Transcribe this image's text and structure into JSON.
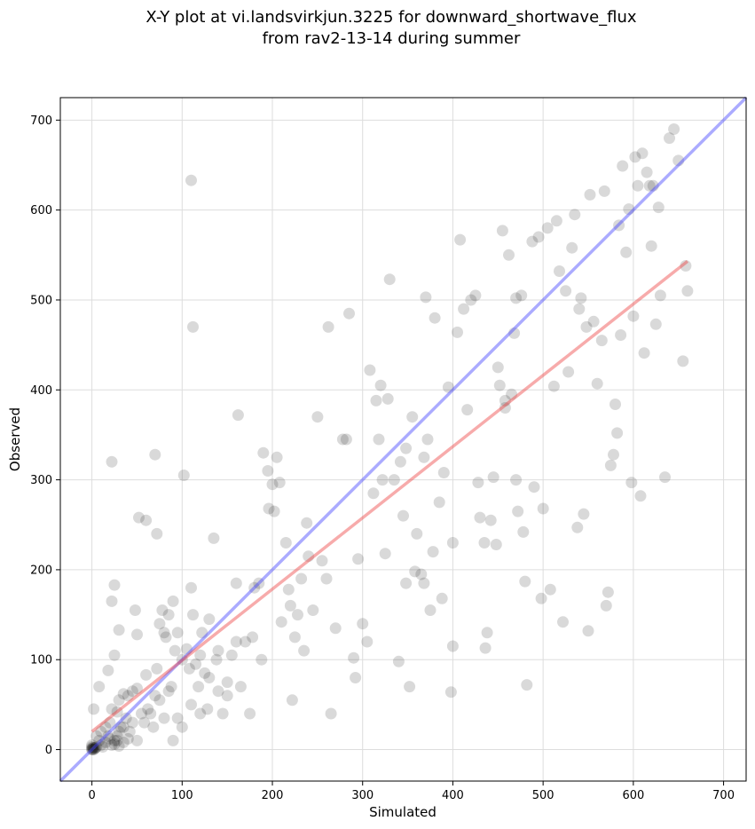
{
  "chart_data": {
    "type": "scatter",
    "title_line1": "X-Y plot at vi.landsvirkjun.3225 for downward_shortwave_flux",
    "title_line2": "from rav2-13-14 during summer",
    "xlabel": "Simulated",
    "ylabel": "Observed",
    "xlim": [
      -35,
      725
    ],
    "ylim": [
      -35,
      725
    ],
    "xticks": [
      0,
      100,
      200,
      300,
      400,
      500,
      600,
      700
    ],
    "yticks": [
      0,
      100,
      200,
      300,
      400,
      500,
      600,
      700
    ],
    "grid": true,
    "colors": {
      "points": "#000000",
      "one_to_one": "#4444ff",
      "fit_line": "#ee4444",
      "grid": "#dddddd"
    },
    "one_to_one_line": {
      "x": [
        -35,
        725
      ],
      "y": [
        -35,
        725
      ]
    },
    "fit_line": {
      "x": [
        0,
        660
      ],
      "y": [
        20,
        543
      ]
    },
    "points": [
      [
        0,
        0
      ],
      [
        0,
        1
      ],
      [
        1,
        0
      ],
      [
        2,
        2
      ],
      [
        1,
        2
      ],
      [
        0,
        3
      ],
      [
        3,
        1
      ],
      [
        2,
        0
      ],
      [
        4,
        2
      ],
      [
        0,
        5
      ],
      [
        5,
        3
      ],
      [
        8,
        10
      ],
      [
        10,
        5
      ],
      [
        15,
        8
      ],
      [
        20,
        12
      ],
      [
        25,
        6
      ],
      [
        12,
        3
      ],
      [
        18,
        15
      ],
      [
        22,
        5
      ],
      [
        28,
        10
      ],
      [
        30,
        4
      ],
      [
        35,
        8
      ],
      [
        40,
        12
      ],
      [
        10,
        20
      ],
      [
        5,
        15
      ],
      [
        15,
        25
      ],
      [
        20,
        30
      ],
      [
        25,
        10
      ],
      [
        30,
        20
      ],
      [
        35,
        25
      ],
      [
        2,
        45
      ],
      [
        8,
        70
      ],
      [
        18,
        88
      ],
      [
        22,
        45
      ],
      [
        28,
        42
      ],
      [
        30,
        55
      ],
      [
        35,
        62
      ],
      [
        25,
        105
      ],
      [
        30,
        133
      ],
      [
        22,
        165
      ],
      [
        25,
        183
      ],
      [
        22,
        320
      ],
      [
        40,
        60
      ],
      [
        45,
        65
      ],
      [
        50,
        68
      ],
      [
        55,
        40
      ],
      [
        60,
        83
      ],
      [
        65,
        40
      ],
      [
        70,
        60
      ],
      [
        72,
        90
      ],
      [
        75,
        140
      ],
      [
        78,
        155
      ],
      [
        80,
        130
      ],
      [
        82,
        125
      ],
      [
        85,
        150
      ],
      [
        88,
        70
      ],
      [
        92,
        110
      ],
      [
        90,
        165
      ],
      [
        95,
        130
      ],
      [
        100,
        100
      ],
      [
        102,
        305
      ],
      [
        105,
        112
      ],
      [
        108,
        90
      ],
      [
        110,
        180
      ],
      [
        112,
        150
      ],
      [
        115,
        95
      ],
      [
        118,
        70
      ],
      [
        120,
        105
      ],
      [
        122,
        130
      ],
      [
        125,
        85
      ],
      [
        128,
        45
      ],
      [
        130,
        145
      ],
      [
        135,
        235
      ],
      [
        138,
        100
      ],
      [
        140,
        65
      ],
      [
        145,
        40
      ],
      [
        150,
        60
      ],
      [
        155,
        105
      ],
      [
        160,
        185
      ],
      [
        162,
        372
      ],
      [
        165,
        70
      ],
      [
        170,
        120
      ],
      [
        175,
        40
      ],
      [
        178,
        125
      ],
      [
        180,
        180
      ],
      [
        185,
        185
      ],
      [
        188,
        100
      ],
      [
        190,
        330
      ],
      [
        195,
        310
      ],
      [
        196,
        268
      ],
      [
        200,
        295
      ],
      [
        202,
        265
      ],
      [
        205,
        325
      ],
      [
        208,
        297
      ],
      [
        210,
        142
      ],
      [
        215,
        230
      ],
      [
        218,
        178
      ],
      [
        220,
        160
      ],
      [
        222,
        55
      ],
      [
        225,
        125
      ],
      [
        228,
        150
      ],
      [
        232,
        190
      ],
      [
        235,
        110
      ],
      [
        238,
        252
      ],
      [
        240,
        215
      ],
      [
        245,
        155
      ],
      [
        250,
        370
      ],
      [
        255,
        210
      ],
      [
        260,
        190
      ],
      [
        262,
        470
      ],
      [
        265,
        40
      ],
      [
        270,
        135
      ],
      [
        278,
        345
      ],
      [
        282,
        345
      ],
      [
        285,
        485
      ],
      [
        290,
        102
      ],
      [
        292,
        80
      ],
      [
        295,
        212
      ],
      [
        300,
        140
      ],
      [
        305,
        120
      ],
      [
        308,
        422
      ],
      [
        312,
        285
      ],
      [
        315,
        388
      ],
      [
        318,
        345
      ],
      [
        320,
        405
      ],
      [
        322,
        300
      ],
      [
        325,
        218
      ],
      [
        328,
        390
      ],
      [
        330,
        523
      ],
      [
        335,
        300
      ],
      [
        340,
        98
      ],
      [
        345,
        260
      ],
      [
        348,
        185
      ],
      [
        352,
        70
      ],
      [
        355,
        370
      ],
      [
        358,
        198
      ],
      [
        360,
        240
      ],
      [
        365,
        195
      ],
      [
        368,
        185
      ],
      [
        370,
        503
      ],
      [
        375,
        155
      ],
      [
        378,
        220
      ],
      [
        380,
        480
      ],
      [
        385,
        275
      ],
      [
        388,
        168
      ],
      [
        390,
        308
      ],
      [
        395,
        403
      ],
      [
        398,
        64
      ],
      [
        400,
        115
      ],
      [
        405,
        464
      ],
      [
        408,
        567
      ],
      [
        412,
        490
      ],
      [
        416,
        378
      ],
      [
        420,
        500
      ],
      [
        425,
        505
      ],
      [
        428,
        297
      ],
      [
        430,
        258
      ],
      [
        435,
        230
      ],
      [
        436,
        113
      ],
      [
        438,
        130
      ],
      [
        442,
        255
      ],
      [
        445,
        303
      ],
      [
        448,
        228
      ],
      [
        450,
        425
      ],
      [
        452,
        405
      ],
      [
        455,
        577
      ],
      [
        458,
        388
      ],
      [
        462,
        550
      ],
      [
        465,
        395
      ],
      [
        468,
        463
      ],
      [
        470,
        502
      ],
      [
        472,
        265
      ],
      [
        476,
        505
      ],
      [
        478,
        242
      ],
      [
        480,
        187
      ],
      [
        482,
        72
      ],
      [
        488,
        565
      ],
      [
        490,
        292
      ],
      [
        495,
        570
      ],
      [
        498,
        168
      ],
      [
        500,
        268
      ],
      [
        505,
        580
      ],
      [
        508,
        178
      ],
      [
        512,
        404
      ],
      [
        515,
        588
      ],
      [
        518,
        532
      ],
      [
        522,
        142
      ],
      [
        525,
        510
      ],
      [
        528,
        420
      ],
      [
        532,
        558
      ],
      [
        535,
        595
      ],
      [
        538,
        247
      ],
      [
        540,
        490
      ],
      [
        542,
        502
      ],
      [
        545,
        262
      ],
      [
        548,
        470
      ],
      [
        550,
        132
      ],
      [
        552,
        617
      ],
      [
        556,
        476
      ],
      [
        560,
        407
      ],
      [
        565,
        455
      ],
      [
        568,
        621
      ],
      [
        570,
        160
      ],
      [
        572,
        175
      ],
      [
        575,
        316
      ],
      [
        578,
        328
      ],
      [
        580,
        384
      ],
      [
        582,
        352
      ],
      [
        584,
        583
      ],
      [
        586,
        461
      ],
      [
        588,
        649
      ],
      [
        592,
        553
      ],
      [
        595,
        601
      ],
      [
        598,
        297
      ],
      [
        600,
        482
      ],
      [
        602,
        659
      ],
      [
        605,
        627
      ],
      [
        608,
        282
      ],
      [
        610,
        663
      ],
      [
        612,
        441
      ],
      [
        615,
        642
      ],
      [
        618,
        627
      ],
      [
        620,
        560
      ],
      [
        622,
        627
      ],
      [
        625,
        473
      ],
      [
        628,
        603
      ],
      [
        630,
        505
      ],
      [
        635,
        303
      ],
      [
        640,
        680
      ],
      [
        645,
        690
      ],
      [
        650,
        655
      ],
      [
        655,
        432
      ],
      [
        658,
        538
      ],
      [
        660,
        510
      ],
      [
        110,
        633
      ],
      [
        112,
        470
      ],
      [
        368,
        325
      ],
      [
        372,
        345
      ],
      [
        348,
        335
      ],
      [
        342,
        320
      ],
      [
        400,
        230
      ],
      [
        458,
        380
      ],
      [
        470,
        300
      ],
      [
        160,
        120
      ],
      [
        150,
        75
      ],
      [
        140,
        110
      ],
      [
        130,
        80
      ],
      [
        120,
        40
      ],
      [
        110,
        50
      ],
      [
        100,
        25
      ],
      [
        95,
        35
      ],
      [
        90,
        10
      ],
      [
        85,
        65
      ],
      [
        60,
        255
      ],
      [
        72,
        240
      ],
      [
        70,
        328
      ],
      [
        52,
        258
      ],
      [
        48,
        155
      ],
      [
        50,
        128
      ],
      [
        45,
        30
      ],
      [
        42,
        20
      ],
      [
        38,
        35
      ],
      [
        32,
        25
      ],
      [
        28,
        15
      ],
      [
        50,
        10
      ],
      [
        58,
        30
      ],
      [
        62,
        45
      ],
      [
        68,
        25
      ],
      [
        75,
        55
      ],
      [
        80,
        35
      ]
    ]
  }
}
